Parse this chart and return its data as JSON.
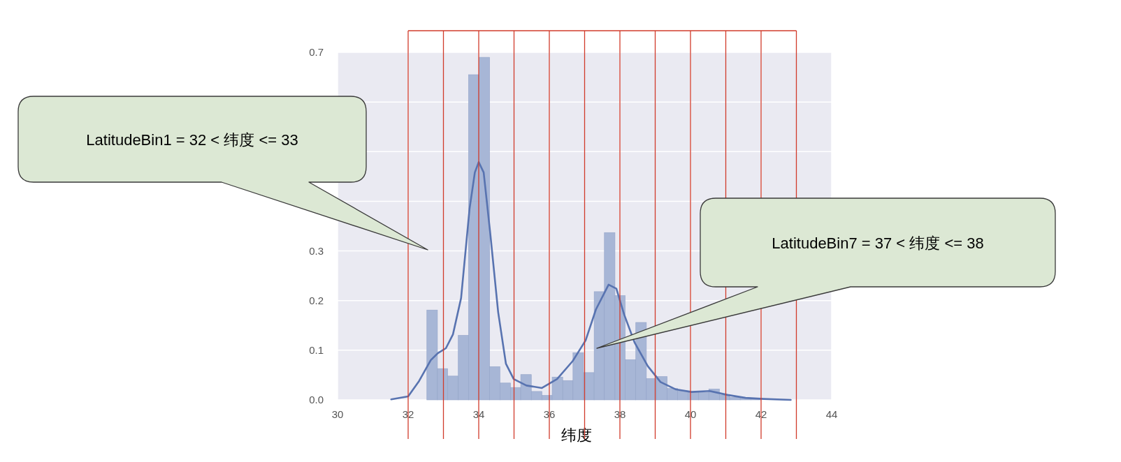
{
  "chart_data": {
    "type": "histogram",
    "xlabel": "纬度",
    "xlim": [
      30,
      44
    ],
    "xticks": [
      30,
      32,
      34,
      36,
      38,
      40,
      42,
      44
    ],
    "ylim": [
      0,
      0.7
    ],
    "yticks": [
      {
        "value": 0,
        "label": "0.0"
      },
      {
        "value": 0.1,
        "label": "0.1"
      },
      {
        "value": 0.2,
        "label": "0.2"
      },
      {
        "value": 0.3,
        "label": "0.3"
      },
      {
        "value": 0.4,
        "label": null
      },
      {
        "value": 0.5,
        "label": null
      },
      {
        "value": 0.6,
        "label": null
      },
      {
        "value": 0.7,
        "label": "0.7"
      }
    ],
    "grid": true,
    "series": [
      {
        "type": "histogram",
        "color": "#a7b6d6",
        "bins": [
          32.53,
          32.83,
          33.12,
          33.42,
          33.71,
          34.01,
          34.31,
          34.6,
          34.9,
          35.19,
          35.49,
          35.79,
          36.08,
          36.38,
          36.67,
          36.97,
          37.27,
          37.56,
          37.86,
          38.15,
          38.45,
          38.75,
          39.04,
          39.34,
          39.63,
          39.93,
          40.23,
          40.52,
          40.82,
          41.11,
          41.41,
          41.71,
          42.0
        ],
        "values": [
          0.181,
          0.063,
          0.048,
          0.13,
          0.655,
          0.69,
          0.067,
          0.034,
          0.025,
          0.051,
          0.017,
          0.009,
          0.046,
          0.039,
          0.095,
          0.055,
          0.218,
          0.337,
          0.21,
          0.081,
          0.156,
          0.043,
          0.047,
          0.023,
          0.018,
          0.015,
          0.015,
          0.022,
          0.01,
          0.005,
          0.004,
          0.003
        ]
      },
      {
        "type": "line",
        "color": "#5873b0",
        "x": [
          31.52,
          32.0,
          32.31,
          32.64,
          32.84,
          33.07,
          33.27,
          33.5,
          33.74,
          33.89,
          34.0,
          34.14,
          34.33,
          34.55,
          34.77,
          34.99,
          35.35,
          35.79,
          36.22,
          36.66,
          37.03,
          37.32,
          37.68,
          37.9,
          38.12,
          38.42,
          38.79,
          39.15,
          39.59,
          40.03,
          40.54,
          41.05,
          41.56,
          42.07,
          42.84
        ],
        "values": [
          0.001,
          0.007,
          0.038,
          0.08,
          0.094,
          0.104,
          0.132,
          0.205,
          0.385,
          0.458,
          0.479,
          0.458,
          0.333,
          0.177,
          0.073,
          0.042,
          0.029,
          0.024,
          0.042,
          0.078,
          0.12,
          0.182,
          0.232,
          0.224,
          0.172,
          0.115,
          0.068,
          0.036,
          0.021,
          0.016,
          0.018,
          0.01,
          0.004,
          0.002,
          0
        ]
      }
    ],
    "ref_lines": [
      {
        "axis": "x",
        "value": 32,
        "color": "#d13b2b"
      },
      {
        "axis": "x",
        "value": 33,
        "color": "#d13b2b"
      },
      {
        "axis": "x",
        "value": 34,
        "color": "#d13b2b"
      },
      {
        "axis": "x",
        "value": 35,
        "color": "#d13b2b"
      },
      {
        "axis": "x",
        "value": 36,
        "color": "#d13b2b"
      },
      {
        "axis": "x",
        "value": 37,
        "color": "#d13b2b"
      },
      {
        "axis": "x",
        "value": 38,
        "color": "#d13b2b"
      },
      {
        "axis": "x",
        "value": 39,
        "color": "#d13b2b"
      },
      {
        "axis": "x",
        "value": 40,
        "color": "#d13b2b"
      },
      {
        "axis": "x",
        "value": 41,
        "color": "#d13b2b"
      },
      {
        "axis": "x",
        "value": 42,
        "color": "#d13b2b"
      },
      {
        "axis": "x",
        "value": 43,
        "color": "#d13b2b"
      }
    ],
    "annotations": [
      "LatitudeBin1 = 32 < 纬度 <= 33",
      "LatitudeBin7 = 37 < 纬度 <= 38"
    ]
  }
}
